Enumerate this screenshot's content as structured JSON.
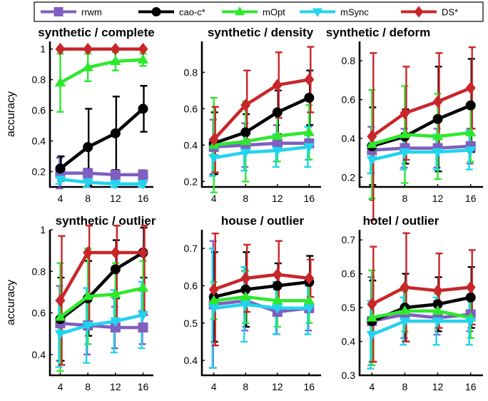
{
  "legend": [
    {
      "name": "rrwm",
      "color": "#7f5fbf",
      "marker": "square"
    },
    {
      "name": "cao-c*",
      "color": "#000000",
      "marker": "circle"
    },
    {
      "name": "mOpt",
      "color": "#2ee82e",
      "marker": "triangle-up"
    },
    {
      "name": "mSync",
      "color": "#22d3ee",
      "marker": "triangle-down"
    },
    {
      "name": "DS*",
      "color": "#c8262a",
      "marker": "diamond"
    }
  ],
  "ylabel": "accuracy",
  "chart_data": [
    {
      "type": "line",
      "title": "synthetic / complete",
      "x": [
        4,
        8,
        12,
        16
      ],
      "xticks": [
        4,
        8,
        12,
        16
      ],
      "xlim": [
        2.5,
        17.5
      ],
      "ylim": [
        0.1,
        1.05
      ],
      "yticks": [
        0.2,
        0.4,
        0.6,
        0.8,
        1
      ],
      "ylabel": "accuracy",
      "series": [
        {
          "name": "rrwm",
          "values": [
            0.19,
            0.19,
            0.18,
            0.18
          ],
          "err": [
            0.1,
            0.03,
            0.03,
            0.03
          ]
        },
        {
          "name": "cao-c*",
          "values": [
            0.22,
            0.36,
            0.45,
            0.61
          ],
          "err": [
            0.08,
            0.25,
            0.24,
            0.15
          ]
        },
        {
          "name": "mOpt",
          "values": [
            0.78,
            0.88,
            0.92,
            0.93
          ],
          "err": [
            0.19,
            0.09,
            0.06,
            0.04
          ]
        },
        {
          "name": "mSync",
          "values": [
            0.15,
            0.13,
            0.12,
            0.12
          ],
          "err": [
            0.03,
            0.03,
            0.02,
            0.02
          ]
        },
        {
          "name": "DS*",
          "values": [
            1.0,
            1.0,
            1.0,
            1.0
          ],
          "err": [
            0.0,
            0.0,
            0.0,
            0.0
          ]
        }
      ]
    },
    {
      "type": "line",
      "title": "synthetic / density",
      "x": [
        4,
        8,
        12,
        16
      ],
      "xticks": [
        4,
        8,
        12,
        16
      ],
      "xlim": [
        2.5,
        17.5
      ],
      "ylim": [
        0.17,
        0.97
      ],
      "yticks": [
        0.2,
        0.4,
        0.6,
        0.8
      ],
      "ylabel": "",
      "series": [
        {
          "name": "rrwm",
          "values": [
            0.39,
            0.4,
            0.41,
            0.41
          ],
          "err": [
            0.15,
            0.12,
            0.1,
            0.09
          ]
        },
        {
          "name": "cao-c*",
          "values": [
            0.41,
            0.47,
            0.58,
            0.66
          ],
          "err": [
            0.17,
            0.1,
            0.12,
            0.15
          ]
        },
        {
          "name": "mOpt",
          "values": [
            0.4,
            0.42,
            0.45,
            0.47
          ],
          "err": [
            0.26,
            0.22,
            0.14,
            0.15
          ]
        },
        {
          "name": "mSync",
          "values": [
            0.33,
            0.36,
            0.37,
            0.39
          ],
          "err": [
            0.1,
            0.1,
            0.09,
            0.11
          ]
        },
        {
          "name": "DS*",
          "values": [
            0.43,
            0.62,
            0.73,
            0.76
          ],
          "err": [
            0.18,
            0.19,
            0.18,
            0.18
          ]
        }
      ]
    },
    {
      "type": "line",
      "title": "synthetic / deform",
      "x": [
        4,
        8,
        12,
        16
      ],
      "xticks": [
        4,
        8,
        12,
        16
      ],
      "xlim": [
        2.5,
        17.5
      ],
      "ylim": [
        0.15,
        0.9
      ],
      "yticks": [
        0.2,
        0.4,
        0.6,
        0.8
      ],
      "ylabel": "",
      "series": [
        {
          "name": "rrwm",
          "values": [
            0.34,
            0.35,
            0.35,
            0.36
          ],
          "err": [
            0.12,
            0.1,
            0.1,
            0.09
          ]
        },
        {
          "name": "cao-c*",
          "values": [
            0.36,
            0.41,
            0.5,
            0.57
          ],
          "err": [
            0.2,
            0.14,
            0.27,
            0.24
          ]
        },
        {
          "name": "mOpt",
          "values": [
            0.37,
            0.42,
            0.41,
            0.43
          ],
          "err": [
            0.28,
            0.25,
            0.22,
            0.15
          ]
        },
        {
          "name": "mSync",
          "values": [
            0.29,
            0.33,
            0.33,
            0.34
          ],
          "err": [
            0.07,
            0.09,
            0.09,
            0.1
          ]
        },
        {
          "name": "DS*",
          "values": [
            0.41,
            0.53,
            0.59,
            0.66
          ],
          "err": [
            0.43,
            0.24,
            0.25,
            0.21
          ]
        }
      ]
    },
    {
      "type": "line",
      "title": "synthetic / outlier",
      "x": [
        4,
        8,
        12,
        16
      ],
      "xticks": [
        4,
        8,
        12,
        16
      ],
      "xlim": [
        2.5,
        17.5
      ],
      "ylim": [
        0.3,
        1.0
      ],
      "yticks": [
        0.4,
        0.6,
        0.8,
        1
      ],
      "ylabel": "accuracy",
      "series": [
        {
          "name": "rrwm",
          "values": [
            0.55,
            0.54,
            0.53,
            0.53
          ],
          "err": [
            0.18,
            0.14,
            0.1,
            0.08
          ]
        },
        {
          "name": "cao-c*",
          "values": [
            0.57,
            0.67,
            0.81,
            0.89
          ],
          "err": [
            0.2,
            0.18,
            0.14,
            0.12
          ]
        },
        {
          "name": "mOpt",
          "values": [
            0.58,
            0.68,
            0.69,
            0.72
          ],
          "err": [
            0.26,
            0.23,
            0.15,
            0.13
          ]
        },
        {
          "name": "mSync",
          "values": [
            0.5,
            0.54,
            0.56,
            0.59
          ],
          "err": [
            0.16,
            0.18,
            0.15,
            0.16
          ]
        },
        {
          "name": "DS*",
          "values": [
            0.66,
            0.89,
            0.89,
            0.89
          ],
          "err": [
            0.31,
            0.33,
            0.33,
            0.3
          ]
        }
      ]
    },
    {
      "type": "line",
      "title": "house / outlier",
      "x": [
        4,
        8,
        12,
        16
      ],
      "xticks": [
        4,
        8,
        12,
        16
      ],
      "xlim": [
        2.5,
        17.5
      ],
      "ylim": [
        0.36,
        0.75
      ],
      "yticks": [
        0.4,
        0.5,
        0.6,
        0.7
      ],
      "ylabel": "",
      "series": [
        {
          "name": "rrwm",
          "values": [
            0.55,
            0.56,
            0.53,
            0.54
          ],
          "err": [
            0.17,
            0.08,
            0.06,
            0.06
          ]
        },
        {
          "name": "cao-c*",
          "values": [
            0.57,
            0.59,
            0.6,
            0.61
          ],
          "err": [
            0.12,
            0.1,
            0.06,
            0.07
          ]
        },
        {
          "name": "mOpt",
          "values": [
            0.56,
            0.57,
            0.56,
            0.56
          ],
          "err": [
            0.05,
            0.07,
            0.07,
            0.06
          ]
        },
        {
          "name": "mSync",
          "values": [
            0.54,
            0.55,
            0.54,
            0.54
          ],
          "err": [
            0.16,
            0.1,
            0.07,
            0.07
          ]
        },
        {
          "name": "DS*",
          "values": [
            0.59,
            0.62,
            0.63,
            0.62
          ],
          "err": [
            0.15,
            0.09,
            0.09,
            0.05
          ]
        }
      ]
    },
    {
      "type": "line",
      "title": "hotel / outlier",
      "x": [
        4,
        8,
        12,
        16
      ],
      "xticks": [
        4,
        8,
        12,
        16
      ],
      "xlim": [
        2.5,
        17.5
      ],
      "ylim": [
        0.3,
        0.73
      ],
      "yticks": [
        0.3,
        0.4,
        0.5,
        0.6,
        0.7
      ],
      "ylabel": "",
      "series": [
        {
          "name": "rrwm",
          "values": [
            0.46,
            0.48,
            0.47,
            0.48
          ],
          "err": [
            0.13,
            0.07,
            0.05,
            0.05
          ]
        },
        {
          "name": "cao-c*",
          "values": [
            0.46,
            0.5,
            0.51,
            0.53
          ],
          "err": [
            0.12,
            0.1,
            0.08,
            0.09
          ]
        },
        {
          "name": "mOpt",
          "values": [
            0.47,
            0.49,
            0.49,
            0.47
          ],
          "err": [
            0.14,
            0.06,
            0.05,
            0.06
          ]
        },
        {
          "name": "mSync",
          "values": [
            0.42,
            0.46,
            0.46,
            0.46
          ],
          "err": [
            0.1,
            0.07,
            0.07,
            0.07
          ]
        },
        {
          "name": "DS*",
          "values": [
            0.51,
            0.56,
            0.55,
            0.56
          ],
          "err": [
            0.17,
            0.16,
            0.11,
            0.11
          ]
        }
      ]
    }
  ]
}
